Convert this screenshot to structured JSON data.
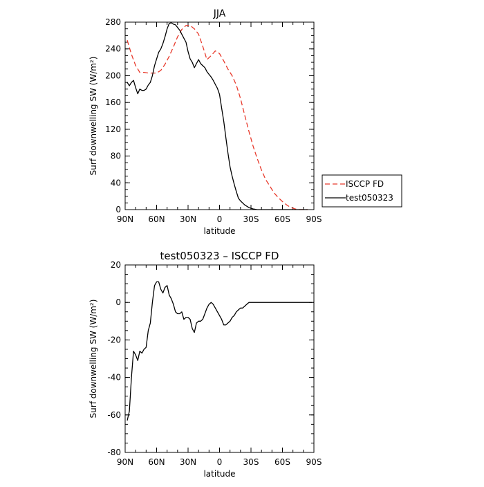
{
  "chart_data": [
    {
      "type": "line",
      "title": "JJA",
      "xlabel": "latitude",
      "ylabel": "Surf downwelling SW (W/m²)",
      "xlim": [
        90,
        -90
      ],
      "ylim": [
        0,
        280
      ],
      "xticks": [
        {
          "value": 90,
          "label": "90N"
        },
        {
          "value": 60,
          "label": "60N"
        },
        {
          "value": 30,
          "label": "30N"
        },
        {
          "value": 0,
          "label": "0"
        },
        {
          "value": -30,
          "label": "30S"
        },
        {
          "value": -60,
          "label": "60S"
        },
        {
          "value": -90,
          "label": "90S"
        }
      ],
      "yticks": [
        0,
        40,
        80,
        120,
        160,
        200,
        240,
        280
      ],
      "grid": false,
      "legend_placement": "right",
      "series": [
        {
          "name": "ISCCP FD",
          "color": "#e8392b",
          "dash": "dashed",
          "x": [
            88,
            84,
            80,
            76,
            72,
            68,
            64,
            60,
            56,
            52,
            48,
            44,
            40,
            36,
            32,
            28,
            24,
            20,
            16,
            12,
            8,
            4,
            0,
            -4,
            -8,
            -12,
            -16,
            -20,
            -24,
            -28,
            -32,
            -36,
            -40,
            -44,
            -48,
            -52,
            -56,
            -60,
            -64,
            -68,
            -72,
            -76,
            -80,
            -84
          ],
          "y": [
            253,
            232,
            215,
            205,
            205,
            204,
            204,
            204,
            208,
            217,
            229,
            243,
            258,
            269,
            275,
            275,
            270,
            262,
            244,
            224,
            230,
            237,
            233,
            222,
            210,
            200,
            186,
            166,
            141,
            117,
            95,
            76,
            59,
            45,
            35,
            25,
            18,
            12,
            7,
            3,
            1,
            0,
            0,
            0
          ]
        },
        {
          "name": "test050323",
          "color": "#000000",
          "dash": "solid",
          "x": [
            88,
            86,
            84,
            82,
            80,
            78,
            76,
            74,
            72,
            70,
            68,
            66,
            64,
            62,
            60,
            58,
            56,
            54,
            52,
            50,
            48,
            46,
            44,
            42,
            40,
            38,
            36,
            34,
            32,
            30,
            28,
            26,
            24,
            22,
            20,
            18,
            16,
            14,
            12,
            10,
            8,
            6,
            4,
            2,
            0,
            -2,
            -4,
            -6,
            -8,
            -10,
            -12,
            -14,
            -16,
            -18,
            -20,
            -24,
            -28,
            -32,
            -36,
            -40,
            -44,
            -48,
            -52,
            -56,
            -60,
            -64,
            -68,
            -72,
            -76,
            -80,
            -84
          ],
          "y": [
            190,
            185,
            190,
            193,
            182,
            173,
            180,
            178,
            178,
            180,
            186,
            190,
            200,
            215,
            225,
            235,
            240,
            248,
            258,
            270,
            278,
            279,
            277,
            276,
            272,
            268,
            262,
            256,
            250,
            236,
            225,
            220,
            212,
            218,
            224,
            218,
            215,
            212,
            206,
            202,
            198,
            193,
            187,
            181,
            172,
            152,
            132,
            108,
            85,
            64,
            50,
            38,
            27,
            17,
            13,
            7,
            3,
            1,
            0,
            0,
            0,
            0,
            0,
            0,
            0,
            0,
            0,
            0,
            0,
            0,
            0
          ]
        }
      ]
    },
    {
      "type": "line",
      "title": "test050323 – ISCCP FD",
      "xlabel": "latitude",
      "ylabel": "Surf downwelling SW (W/m²)",
      "xlim": [
        90,
        -90
      ],
      "ylim": [
        -80,
        20
      ],
      "xticks": [
        {
          "value": 90,
          "label": "90N"
        },
        {
          "value": 60,
          "label": "60N"
        },
        {
          "value": 30,
          "label": "30N"
        },
        {
          "value": 0,
          "label": "0"
        },
        {
          "value": -30,
          "label": "30S"
        },
        {
          "value": -60,
          "label": "60S"
        },
        {
          "value": -90,
          "label": "90S"
        }
      ],
      "yticks": [
        -80,
        -60,
        -40,
        -20,
        0,
        20
      ],
      "grid": false,
      "series": [
        {
          "color": "#000000",
          "dash": "solid",
          "x": [
            88,
            86,
            84,
            82,
            80,
            78,
            76,
            74,
            72,
            70,
            68,
            66,
            64,
            62,
            60,
            58,
            56,
            54,
            52,
            50,
            48,
            46,
            44,
            42,
            40,
            38,
            36,
            34,
            32,
            30,
            28,
            26,
            24,
            22,
            20,
            18,
            16,
            14,
            12,
            10,
            8,
            6,
            4,
            2,
            0,
            -2,
            -4,
            -6,
            -8,
            -10,
            -12,
            -14,
            -16,
            -18,
            -20,
            -22,
            -24,
            -26,
            -28,
            -30,
            -32,
            -34,
            -36,
            -38,
            -40,
            -42,
            -44,
            -46,
            -48,
            -50,
            -52,
            -54,
            -56,
            -58,
            -60,
            -62,
            -64,
            -66,
            -68,
            -70,
            -72,
            -74,
            -76,
            -78,
            -80,
            -82,
            -84,
            -86,
            -88
          ],
          "y": [
            -63,
            -58,
            -40,
            -26,
            -28,
            -31,
            -26,
            -27,
            -25,
            -24,
            -15,
            -11,
            0,
            9,
            11,
            11,
            7,
            5,
            8,
            9,
            4,
            2,
            -1,
            -5,
            -6,
            -6,
            -5,
            -9,
            -8,
            -8,
            -9,
            -14,
            -16,
            -11,
            -10,
            -10,
            -9,
            -6,
            -3,
            -1,
            0,
            -1,
            -3,
            -5,
            -7,
            -9,
            -12,
            -12,
            -11,
            -10,
            -8,
            -7,
            -5,
            -4,
            -3,
            -3,
            -2,
            -1,
            0,
            0,
            0,
            0,
            0,
            0,
            0,
            0,
            0,
            0,
            0,
            0,
            0,
            0,
            0,
            0,
            0,
            0,
            0,
            0,
            0,
            0,
            0,
            0,
            0,
            0,
            0,
            0,
            0,
            0,
            0
          ]
        }
      ]
    }
  ]
}
